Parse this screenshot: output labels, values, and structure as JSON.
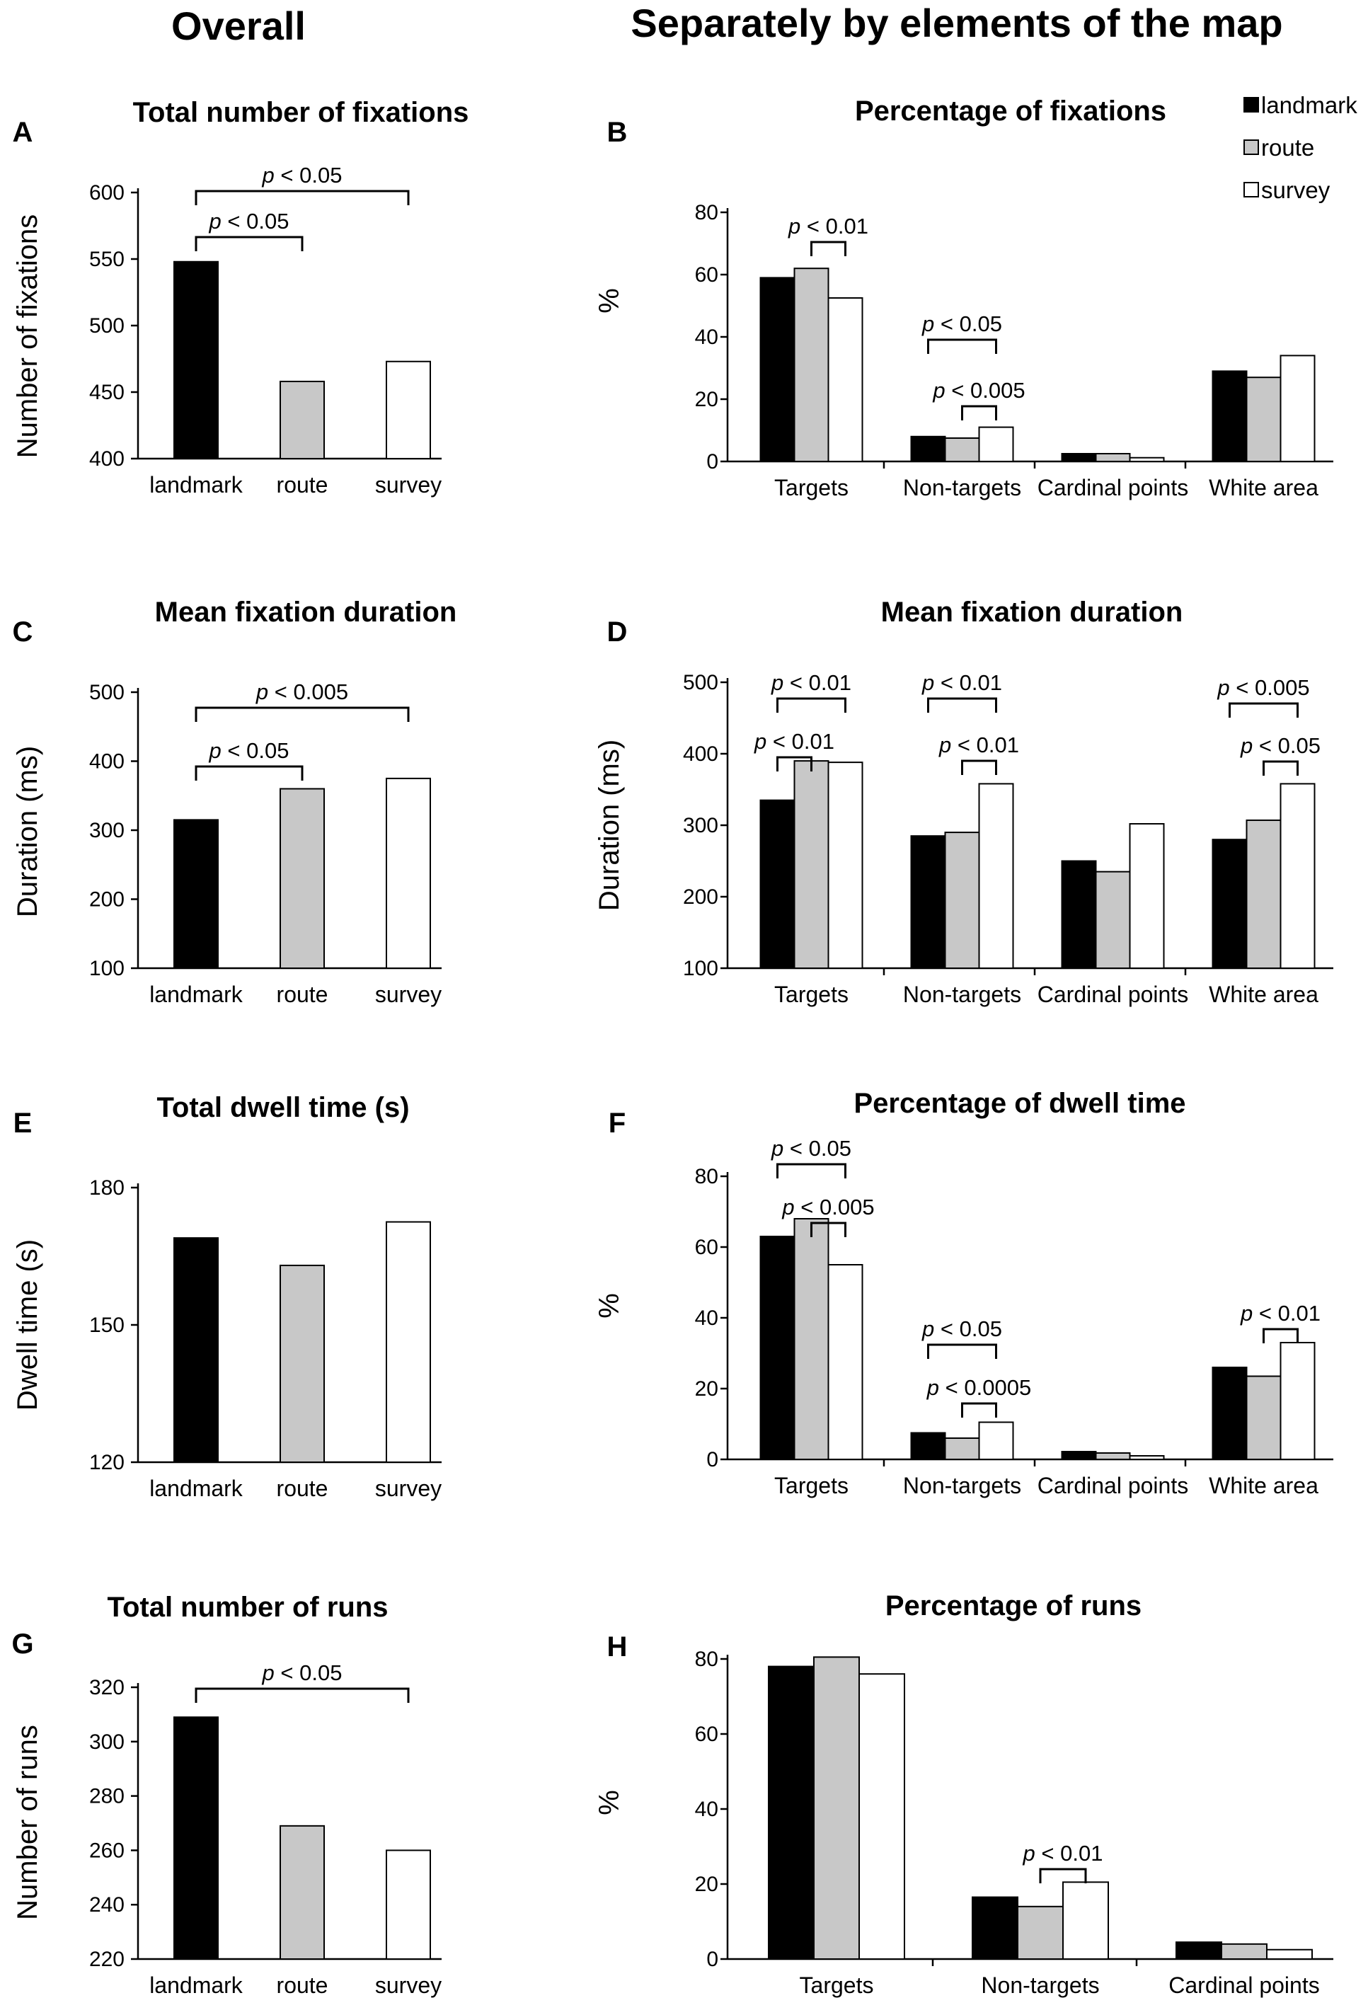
{
  "headings": {
    "left": "Overall",
    "right": "Separately by elements of the map"
  },
  "colors": {
    "landmark": "#000000",
    "route": "#c8c8c8",
    "survey": "#ffffff",
    "axis": "#000000"
  },
  "legend": [
    {
      "key": "landmark",
      "label": "landmark"
    },
    {
      "key": "route",
      "label": "route"
    },
    {
      "key": "survey",
      "label": "survey"
    }
  ],
  "chart_data": [
    {
      "id": "A",
      "letter": "A",
      "type": "bar",
      "title": "Total number of fixations",
      "ylabel": "Number of fixations",
      "ylim": [
        400,
        600
      ],
      "yticks": [
        400,
        450,
        500,
        550,
        600
      ],
      "categories": [
        "landmark",
        "route",
        "survey"
      ],
      "series": [
        {
          "name": "all",
          "values": [
            548,
            458,
            473
          ]
        }
      ],
      "annotations": [
        {
          "prefix": "p",
          "text": " < 0.05",
          "from": [
            0,
            0
          ],
          "to": [
            2,
            0
          ]
        },
        {
          "prefix": "p",
          "text": " < 0.05",
          "from": [
            0,
            0
          ],
          "to": [
            1,
            0
          ]
        }
      ]
    },
    {
      "id": "B",
      "letter": "B",
      "type": "bar",
      "title": "Percentage of fixations",
      "ylabel": "%",
      "ylim": [
        0,
        80
      ],
      "yticks": [
        0,
        20,
        40,
        60,
        80
      ],
      "categories": [
        "Targets",
        "Non-targets",
        "Cardinal points",
        "White area"
      ],
      "series": [
        {
          "name": "landmark",
          "values": [
            59,
            8,
            2.5,
            29
          ]
        },
        {
          "name": "route",
          "values": [
            62,
            7.5,
            2.5,
            27
          ]
        },
        {
          "name": "survey",
          "values": [
            52.5,
            11,
            1.2,
            34
          ]
        }
      ],
      "annotations": [
        {
          "prefix": "p",
          "text": " < 0.01",
          "from": [
            0,
            1
          ],
          "to": [
            0,
            2
          ]
        },
        {
          "prefix": "p",
          "text": " < 0.05",
          "from": [
            1,
            0
          ],
          "to": [
            1,
            2
          ]
        },
        {
          "prefix": "p",
          "text": " < 0.005",
          "from": [
            1,
            1
          ],
          "to": [
            1,
            2
          ]
        }
      ]
    },
    {
      "id": "C",
      "letter": "C",
      "type": "bar",
      "title": "Mean fixation duration",
      "ylabel": "Duration (ms)",
      "ylim": [
        100,
        500
      ],
      "yticks": [
        100,
        200,
        300,
        400,
        500
      ],
      "categories": [
        "landmark",
        "route",
        "survey"
      ],
      "series": [
        {
          "name": "all",
          "values": [
            315,
            360,
            375
          ]
        }
      ],
      "annotations": [
        {
          "prefix": "p",
          "text": " < 0.005",
          "from": [
            0,
            0
          ],
          "to": [
            2,
            0
          ]
        },
        {
          "prefix": "p",
          "text": " < 0.05",
          "from": [
            0,
            0
          ],
          "to": [
            1,
            0
          ]
        }
      ]
    },
    {
      "id": "D",
      "letter": "D",
      "type": "bar",
      "title": "Mean fixation duration",
      "ylabel": "Duration (ms)",
      "ylim": [
        100,
        500
      ],
      "yticks": [
        100,
        200,
        300,
        400,
        500
      ],
      "categories": [
        "Targets",
        "Non-targets",
        "Cardinal points",
        "White area"
      ],
      "series": [
        {
          "name": "landmark",
          "values": [
            335,
            285,
            250,
            280
          ]
        },
        {
          "name": "route",
          "values": [
            390,
            290,
            235,
            307
          ]
        },
        {
          "name": "survey",
          "values": [
            388,
            358,
            302,
            358
          ]
        }
      ],
      "annotations": [
        {
          "prefix": "p",
          "text": " < 0.01",
          "from": [
            0,
            0
          ],
          "to": [
            0,
            2
          ]
        },
        {
          "prefix": "p",
          "text": " < 0.01",
          "from": [
            0,
            0
          ],
          "to": [
            0,
            1
          ]
        },
        {
          "prefix": "p",
          "text": " < 0.01",
          "from": [
            1,
            0
          ],
          "to": [
            1,
            2
          ]
        },
        {
          "prefix": "p",
          "text": " < 0.01",
          "from": [
            1,
            1
          ],
          "to": [
            1,
            2
          ]
        },
        {
          "prefix": "p",
          "text": " < 0.005",
          "from": [
            3,
            0
          ],
          "to": [
            3,
            2
          ]
        },
        {
          "prefix": "p",
          "text": " < 0.05",
          "from": [
            3,
            1
          ],
          "to": [
            3,
            2
          ]
        }
      ]
    },
    {
      "id": "E",
      "letter": "E",
      "type": "bar",
      "title": "Total dwell time (s)",
      "ylabel": "Dwell time (s)",
      "ylim": [
        120,
        180
      ],
      "yticks": [
        120,
        150,
        180
      ],
      "categories": [
        "landmark",
        "route",
        "survey"
      ],
      "series": [
        {
          "name": "all",
          "values": [
            169,
            163,
            172.5
          ]
        }
      ],
      "annotations": []
    },
    {
      "id": "F",
      "letter": "F",
      "type": "bar",
      "title": "Percentage of dwell time",
      "ylabel": "%",
      "ylim": [
        0,
        80
      ],
      "yticks": [
        0,
        20,
        40,
        60,
        80
      ],
      "categories": [
        "Targets",
        "Non-targets",
        "Cardinal points",
        "White area"
      ],
      "series": [
        {
          "name": "landmark",
          "values": [
            63,
            7.5,
            2.2,
            26
          ]
        },
        {
          "name": "route",
          "values": [
            68,
            6,
            1.8,
            23.5
          ]
        },
        {
          "name": "survey",
          "values": [
            55,
            10.5,
            1,
            33
          ]
        }
      ],
      "annotations": [
        {
          "prefix": "p",
          "text": " < 0.05",
          "from": [
            0,
            0
          ],
          "to": [
            0,
            2
          ]
        },
        {
          "prefix": "p",
          "text": " < 0.005",
          "from": [
            0,
            1
          ],
          "to": [
            0,
            2
          ]
        },
        {
          "prefix": "p",
          "text": " < 0.05",
          "from": [
            1,
            0
          ],
          "to": [
            1,
            2
          ]
        },
        {
          "prefix": "p",
          "text": " < 0.0005",
          "from": [
            1,
            1
          ],
          "to": [
            1,
            2
          ]
        },
        {
          "prefix": "p",
          "text": " < 0.01",
          "from": [
            3,
            1
          ],
          "to": [
            3,
            2
          ]
        }
      ]
    },
    {
      "id": "G",
      "letter": "G",
      "type": "bar",
      "title": "Total number of runs",
      "ylabel": "Number of runs",
      "ylim": [
        220,
        320
      ],
      "yticks": [
        220,
        240,
        260,
        280,
        300,
        320
      ],
      "categories": [
        "landmark",
        "route",
        "survey"
      ],
      "series": [
        {
          "name": "all",
          "values": [
            309,
            269,
            260
          ]
        }
      ],
      "annotations": [
        {
          "prefix": "p",
          "text": " < 0.05",
          "from": [
            0,
            0
          ],
          "to": [
            2,
            0
          ]
        }
      ]
    },
    {
      "id": "H",
      "letter": "H",
      "type": "bar",
      "title": "Percentage of runs",
      "ylabel": "%",
      "ylim": [
        0,
        80
      ],
      "yticks": [
        0,
        20,
        40,
        60,
        80
      ],
      "categories": [
        "Targets",
        "Non-targets",
        "Cardinal points"
      ],
      "series": [
        {
          "name": "landmark",
          "values": [
            78,
            16.5,
            4.5
          ]
        },
        {
          "name": "route",
          "values": [
            80.5,
            14,
            4
          ]
        },
        {
          "name": "survey",
          "values": [
            76,
            20.5,
            2.5
          ]
        }
      ],
      "annotations": [
        {
          "prefix": "p",
          "text": " < 0.01",
          "from": [
            1,
            1
          ],
          "to": [
            1,
            2
          ]
        }
      ]
    }
  ]
}
